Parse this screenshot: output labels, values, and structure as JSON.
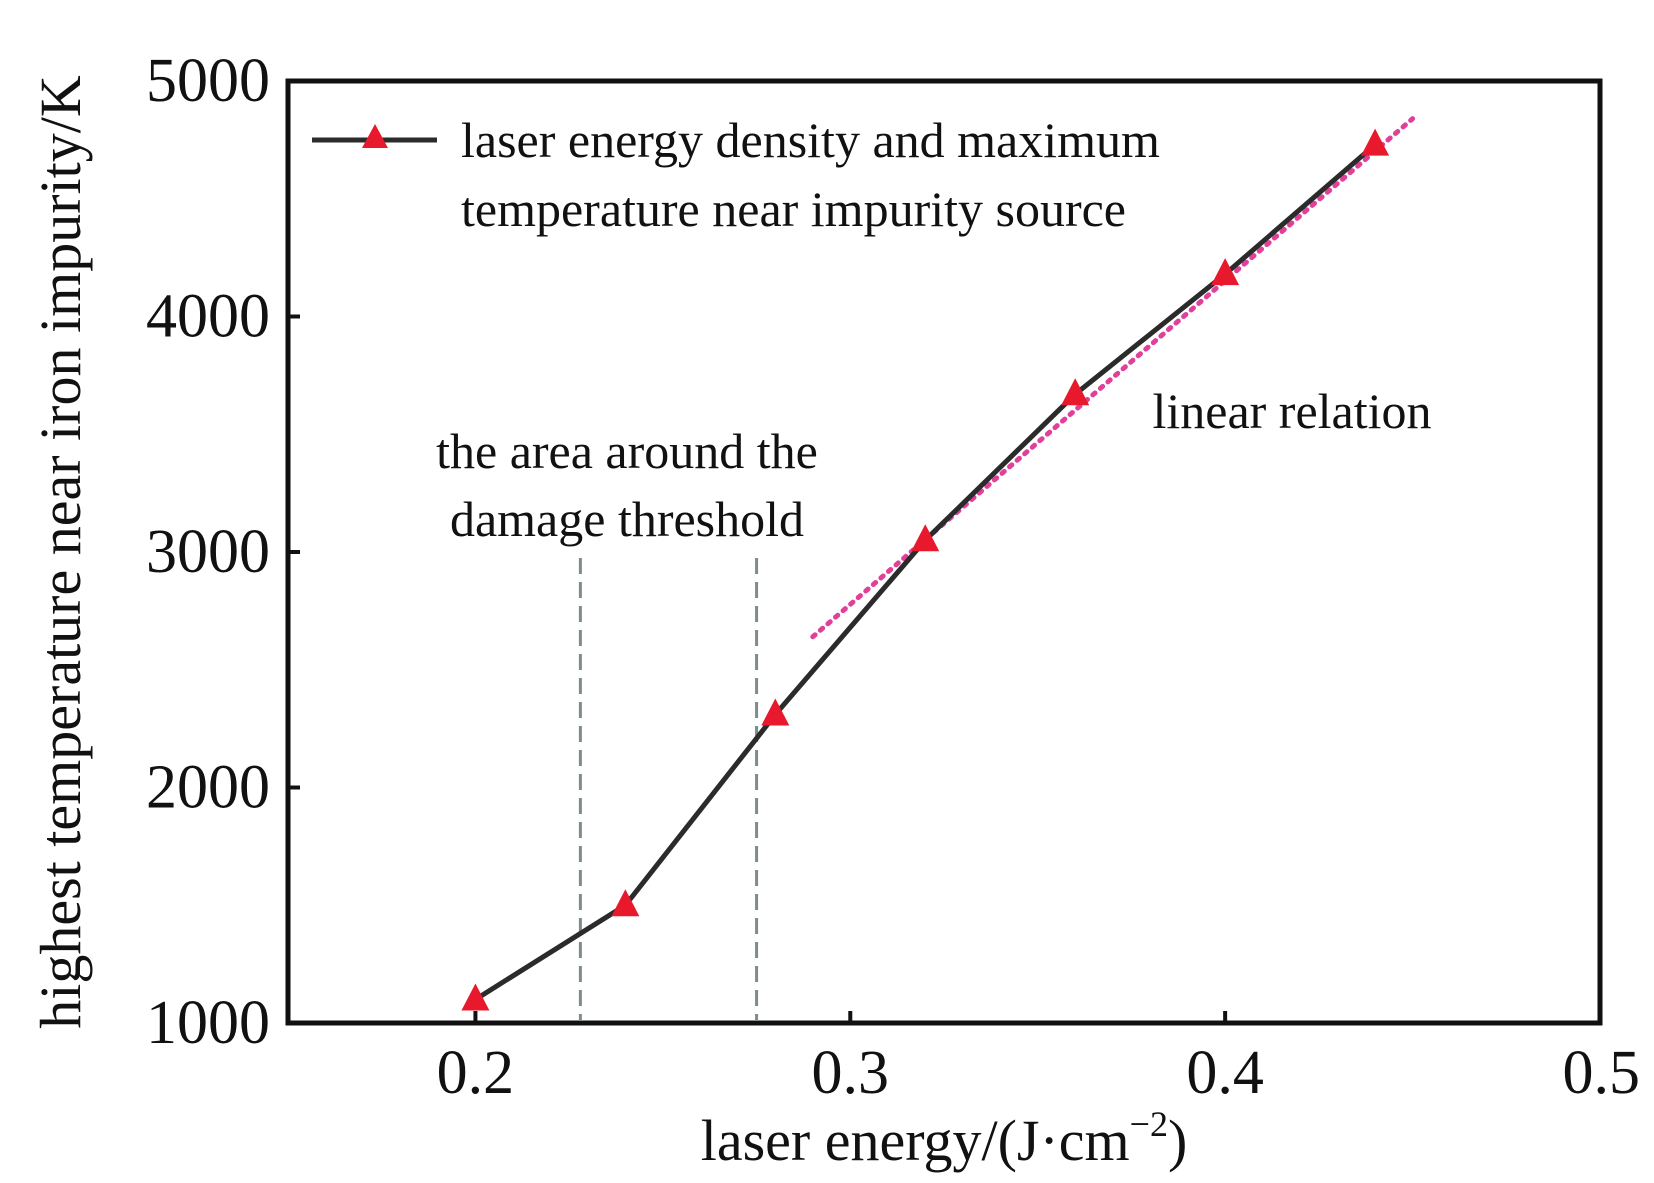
{
  "chart_data": {
    "type": "line",
    "xlabel": "laser energy/(J·cm",
    "xlabel_unit_sup": "−2",
    "xlabel_close": ")",
    "ylabel": "highest temperature near iron impurity/K",
    "xlim": [
      0.15,
      0.5
    ],
    "ylim": [
      1000,
      5000
    ],
    "x_ticks": [
      0.2,
      0.3,
      0.4,
      0.5
    ],
    "x_tick_labels": [
      "0.2",
      "0.3",
      "0.4",
      "0.5"
    ],
    "y_ticks": [
      1000,
      2000,
      3000,
      4000,
      5000
    ],
    "y_tick_labels": [
      "1000",
      "2000",
      "3000",
      "4000",
      "5000"
    ],
    "grid": false,
    "legend_position": "top-left",
    "legend_lines": [
      "laser energy density and maximum",
      "temperature near impurity source"
    ],
    "series": [
      {
        "name": "laser energy density and maximum temperature near impurity source",
        "marker": "triangle",
        "x": [
          0.2,
          0.24,
          0.28,
          0.32,
          0.36,
          0.4,
          0.44
        ],
        "y": [
          1100,
          1500,
          2310,
          3050,
          3670,
          4180,
          4730
        ]
      }
    ],
    "fit_line": {
      "x": [
        0.29,
        0.45
      ],
      "y": [
        2640,
        4840
      ]
    },
    "threshold_lines_x": [
      0.228,
      0.275
    ],
    "annotations": {
      "threshold_line1": "the area around the",
      "threshold_line2": "damage threshold",
      "linear": "linear relation"
    },
    "colors": {
      "line": "#2b2b2b",
      "marker": "#e8192c",
      "fit_line": "#e0409a",
      "threshold": "#7f8c8c",
      "frame": "#111111"
    }
  }
}
